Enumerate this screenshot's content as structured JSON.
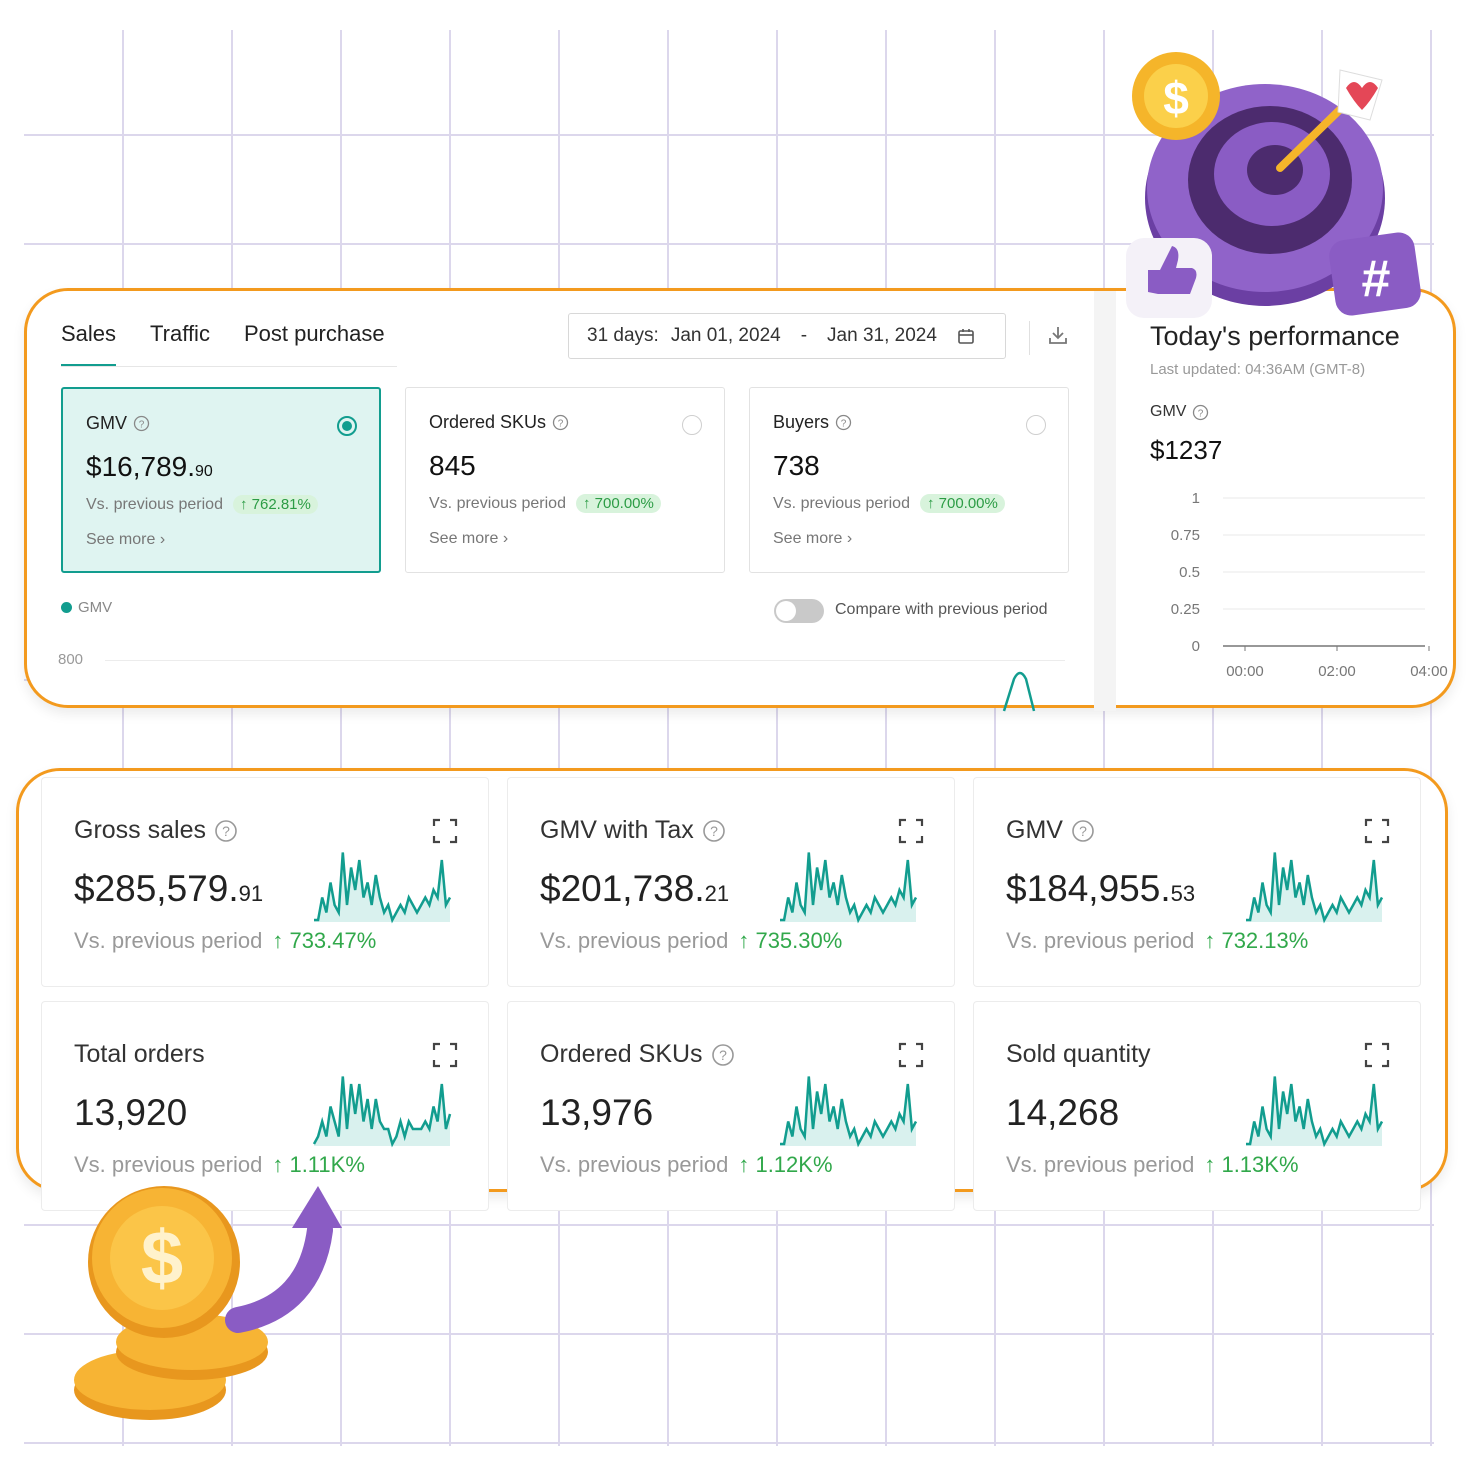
{
  "tabs": [
    {
      "label": "Sales",
      "active": true
    },
    {
      "label": "Traffic",
      "active": false
    },
    {
      "label": "Post purchase",
      "active": false
    }
  ],
  "date_range": {
    "prefix": "31 days:",
    "from": "Jan 01, 2024",
    "separator": "-",
    "to": "Jan 31, 2024"
  },
  "metric_cards": [
    {
      "title": "GMV",
      "value_main": "$16,789.",
      "value_cents": "90",
      "vs_label": "Vs. previous period",
      "change": "762.81%",
      "more": "See more",
      "selected": true
    },
    {
      "title": "Ordered SKUs",
      "value_main": "845",
      "value_cents": "",
      "vs_label": "Vs. previous period",
      "change": "700.00%",
      "more": "See more",
      "selected": false
    },
    {
      "title": "Buyers",
      "value_main": "738",
      "value_cents": "",
      "vs_label": "Vs. previous period",
      "change": "700.00%",
      "more": "See more",
      "selected": false
    }
  ],
  "legend": {
    "label": "GMV",
    "color": "#129d8f"
  },
  "compare_label": "Compare with previous period",
  "main_chart": {
    "y_top_label": "800"
  },
  "today": {
    "title": "Today's performance",
    "updated": "Last updated: 04:36AM (GMT-8)",
    "metric": "GMV",
    "value": "$1237"
  },
  "chart_data": {
    "type": "line",
    "title": "",
    "x": [
      "00:00",
      "02:00",
      "04:00"
    ],
    "y_ticks": [
      "1",
      "0.75",
      "0.5",
      "0.25",
      "0"
    ],
    "ylim": [
      0,
      1
    ],
    "grid": true
  },
  "kpis": [
    {
      "title": "Gross sales",
      "help": true,
      "value_main": "$285,579.",
      "value_cents": "91",
      "vs_label": "Vs. previous period",
      "change": "733.47%"
    },
    {
      "title": "GMV with Tax",
      "help": true,
      "value_main": "$201,738.",
      "value_cents": "21",
      "vs_label": "Vs. previous period",
      "change": "735.30%"
    },
    {
      "title": "GMV",
      "help": true,
      "value_main": "$184,955.",
      "value_cents": "53",
      "vs_label": "Vs. previous period",
      "change": "732.13%"
    },
    {
      "title": "Total orders",
      "help": false,
      "value_main": "13,920",
      "value_cents": "",
      "vs_label": "Vs. previous period",
      "change": "1.11K%"
    },
    {
      "title": "Ordered SKUs",
      "help": true,
      "value_main": "13,976",
      "value_cents": "",
      "vs_label": "Vs. previous period",
      "change": "1.12K%"
    },
    {
      "title": "Sold quantity",
      "help": false,
      "value_main": "14,268",
      "value_cents": "",
      "vs_label": "Vs. previous period",
      "change": "1.13K%"
    }
  ],
  "colors": {
    "accent": "#129d8f",
    "frame": "#f39a1e",
    "positive": "#31a84b",
    "grid": "#dcd7ec",
    "decor_purple": "#8a5cc4",
    "decor_gold": "#f5b52a"
  },
  "icons": {
    "calendar": "calendar-icon",
    "download": "download-icon",
    "help": "help-icon",
    "expand": "expand-icon"
  }
}
